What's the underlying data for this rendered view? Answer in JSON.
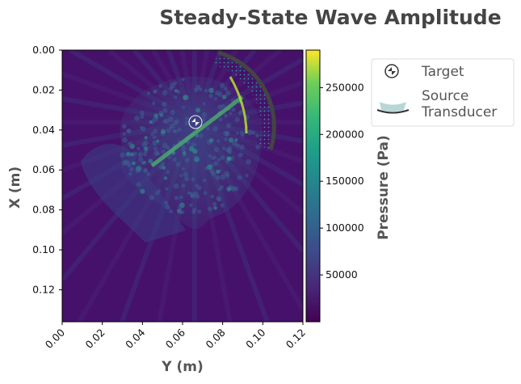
{
  "chart_data": {
    "type": "heatmap",
    "title": "Steady-State Wave Amplitude",
    "xlabel": "Y (m)",
    "ylabel": "X (m)",
    "xlim": [
      0.0,
      0.12
    ],
    "ylim": [
      0.136,
      0.0
    ],
    "x_ticks": [
      "0.00",
      "0.02",
      "0.04",
      "0.06",
      "0.08",
      "0.10",
      "0.12"
    ],
    "y_ticks": [
      "0.00",
      "0.02",
      "0.04",
      "0.06",
      "0.08",
      "0.10",
      "0.12"
    ],
    "colorbar": {
      "label": "Pressure (Pa)",
      "colormap": "viridis",
      "range": [
        0,
        290000
      ],
      "ticks": [
        "50000",
        "100000",
        "150000",
        "200000",
        "250000"
      ]
    },
    "target": {
      "y": 0.066,
      "x": 0.036
    },
    "legend": {
      "placement": "outside-right",
      "entries": [
        {
          "label": "Target",
          "icon": "target-circle-icon"
        },
        {
          "label": "Source\nTransducer",
          "icon": "transducer-arc-icon"
        }
      ]
    },
    "colors": {
      "low": "#440154",
      "mid": "#21918c",
      "high": "#fde725",
      "transducer": "#444444"
    }
  }
}
